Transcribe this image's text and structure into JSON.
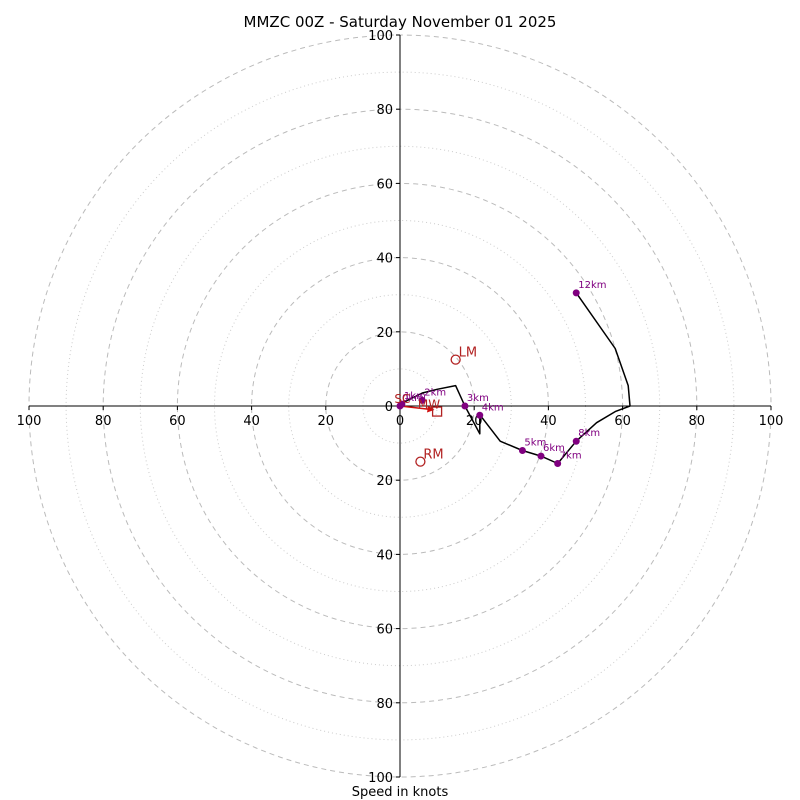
{
  "chart_data": {
    "type": "hodograph",
    "title": "MMZC 00Z - Saturday November 01 2025",
    "xlabel": "Speed in knots",
    "range": [
      -100,
      100
    ],
    "ring_major": [
      20,
      40,
      60,
      80,
      100
    ],
    "ring_minor": [
      10,
      30,
      50,
      70,
      90
    ],
    "tick_labels": [
      {
        "value": -100,
        "label": "100"
      },
      {
        "value": -80,
        "label": "80"
      },
      {
        "value": -60,
        "label": "60"
      },
      {
        "value": -40,
        "label": "40"
      },
      {
        "value": -20,
        "label": "20"
      },
      {
        "value": 0,
        "label": "0"
      },
      {
        "value": 20,
        "label": "20"
      },
      {
        "value": 40,
        "label": "40"
      },
      {
        "value": 60,
        "label": "60"
      },
      {
        "value": 80,
        "label": "80"
      },
      {
        "value": 100,
        "label": "100"
      }
    ],
    "trace": [
      [
        0,
        0
      ],
      [
        0.5,
        0.5
      ],
      [
        1,
        1
      ],
      [
        3,
        2
      ],
      [
        6,
        3.5
      ],
      [
        10,
        4.5
      ],
      [
        15,
        5.5
      ],
      [
        17.5,
        0
      ],
      [
        21.5,
        -7.5
      ],
      [
        21.5,
        -2.5
      ],
      [
        22,
        -3
      ],
      [
        27,
        -9.5
      ],
      [
        33,
        -12
      ],
      [
        38,
        -13.5
      ],
      [
        42.5,
        -15.5
      ],
      [
        47.5,
        -9.5
      ],
      [
        53,
        -4.5
      ],
      [
        58,
        -1.5
      ],
      [
        62,
        0
      ],
      [
        61.5,
        5.5
      ],
      [
        58,
        15.5
      ],
      [
        47.5,
        30.5
      ]
    ],
    "height_points": [
      {
        "label": "0km",
        "u": 0,
        "v": 0
      },
      {
        "label": "1km",
        "u": 0.5,
        "v": 0.5
      },
      {
        "label": "2km",
        "u": 6,
        "v": 1.5
      },
      {
        "label": "3km",
        "u": 17.5,
        "v": 0
      },
      {
        "label": "4km",
        "u": 21.5,
        "v": -2.5
      },
      {
        "label": "5km",
        "u": 33,
        "v": -12
      },
      {
        "label": "6km",
        "u": 38,
        "v": -13.5
      },
      {
        "label": "7km",
        "u": 42.5,
        "v": -15.5
      },
      {
        "label": "8km",
        "u": 47.5,
        "v": -9.5
      },
      {
        "label": "12km",
        "u": 47.5,
        "v": 30.5
      }
    ],
    "markers": [
      {
        "label": "LM",
        "u": 15,
        "v": 12.5,
        "shape": "circle"
      },
      {
        "label": "RM",
        "u": 5.5,
        "v": -15,
        "shape": "circle"
      },
      {
        "label": "MW",
        "u": 10,
        "v": -1.5,
        "shape": "square"
      },
      {
        "label": "SC",
        "u": -1.5,
        "v": 0.5,
        "shape": "none"
      }
    ],
    "shear_vector": {
      "from": [
        0,
        0
      ],
      "to": [
        9,
        -1
      ]
    },
    "colors": {
      "trace": "#000000",
      "height_points": "#800080",
      "markers": "#b22222",
      "grid": "#bbbbbb"
    }
  }
}
